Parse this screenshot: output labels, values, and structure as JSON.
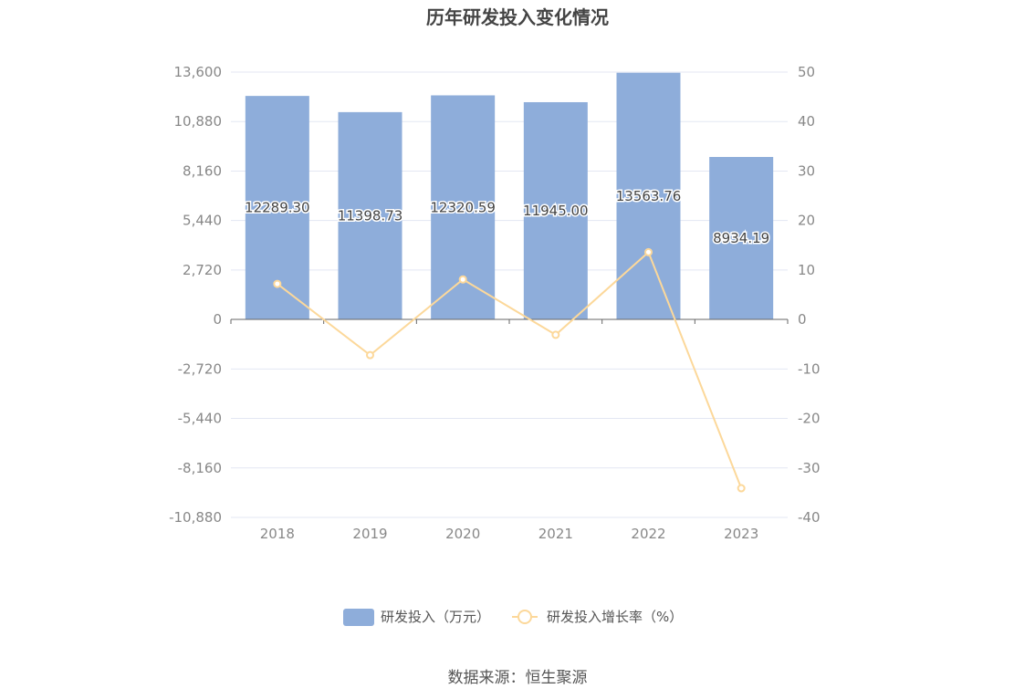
{
  "title": "历年研发投入变化情况",
  "source": "数据来源：恒生聚源",
  "colors": {
    "bar": "#8eadda",
    "line": "#fcd89a",
    "grid": "#e3e7f3",
    "axis": "#666666"
  },
  "chart_data": {
    "type": "bar",
    "title": "历年研发投入变化情况",
    "categories": [
      "2018",
      "2019",
      "2020",
      "2021",
      "2022",
      "2023"
    ],
    "series": [
      {
        "name": "研发投入（万元）",
        "type": "bar",
        "axis": "left",
        "values": [
          12289.3,
          11398.73,
          12320.59,
          11945.0,
          13563.76,
          8934.19
        ],
        "labels": [
          "12289.30",
          "11398.73",
          "12320.59",
          "11945.00",
          "13563.76",
          "8934.19"
        ]
      },
      {
        "name": "研发投入增长率（%）",
        "type": "line",
        "axis": "right",
        "values": [
          7.2,
          -7.2,
          8.1,
          -3.1,
          13.6,
          -34.1
        ]
      }
    ],
    "y_left": {
      "ylim": [
        -10880,
        13600
      ],
      "ticks": [
        "13,600",
        "10,880",
        "8,160",
        "5,440",
        "2,720",
        "0",
        "-2,720",
        "-5,440",
        "-8,160",
        "-10,880"
      ]
    },
    "y_right": {
      "ylim": [
        -40,
        50
      ],
      "ticks": [
        "50",
        "40",
        "30",
        "20",
        "10",
        "0",
        "-10",
        "-20",
        "-30",
        "-40"
      ]
    },
    "grid": true,
    "legend_position": "bottom"
  }
}
